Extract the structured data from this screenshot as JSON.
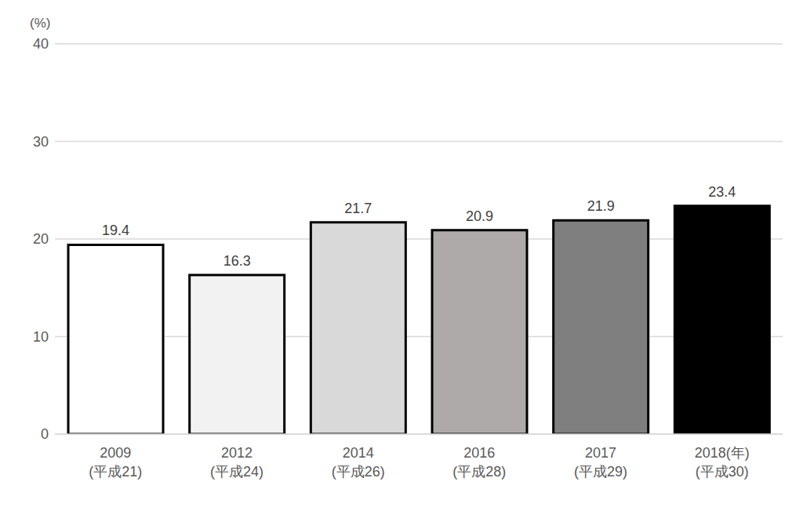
{
  "chart_data": {
    "type": "bar",
    "ylabel": "(%)",
    "categories": [
      "2009\n(平成21)",
      "2012\n(平成24)",
      "2014\n(平成26)",
      "2016\n(平成28)",
      "2017\n(平成29)",
      "2018(年)\n(平成30)"
    ],
    "values": [
      19.4,
      16.3,
      21.7,
      20.9,
      21.9,
      23.4
    ],
    "colors": [
      "#ffffff",
      "#f2f2f2",
      "#d9d9d9",
      "#aeaaaa",
      "#7f7f7f",
      "#000000"
    ],
    "ylim": [
      0,
      40
    ],
    "yticks": [
      0,
      10,
      20,
      30,
      40
    ],
    "grid": true,
    "data_labels": true
  }
}
